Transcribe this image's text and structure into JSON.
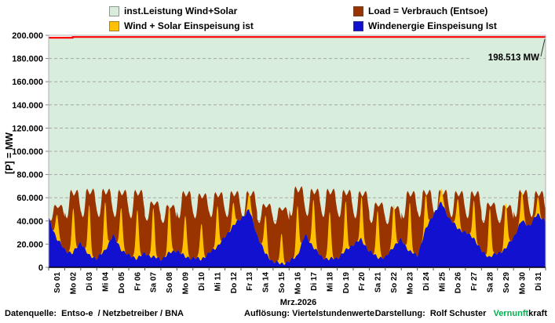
{
  "legend": [
    {
      "label": "inst.Leistung Wind+Solar",
      "color": "#d9eddc"
    },
    {
      "label": "Wind + Solar Einspeisung ist",
      "color": "#ffc000"
    },
    {
      "label": "Load =  Verbrauch (Entsoe)",
      "color": "#993300"
    },
    {
      "label": "Windenergie Einspeisung Ist",
      "color": "#1111cf"
    }
  ],
  "footer": {
    "source": "Datenquelle:  Entso-e  / Netzbetreiber / BNA",
    "resolution": "Auflösung: Viertelstundenwerte",
    "credit_label": "Darstellung:  Rolf Schuster   ",
    "brand_green": "Vernunft",
    "brand_black": "kraft"
  },
  "chart_data": {
    "type": "area",
    "title": "Mrz.2026",
    "ylabel": "[P] = MW",
    "unit": "MW",
    "ylim": [
      0,
      200000
    ],
    "y_tick_step": 20000,
    "y_tick_labels": [
      "0",
      "20.000",
      "40.000",
      "60.000",
      "80.000",
      "100.000",
      "120.000",
      "140.000",
      "160.000",
      "180.000",
      "200.000"
    ],
    "grid": "dashed-horizontal",
    "legend_position": "top",
    "colors": {
      "capacity_area": "#d9eddc",
      "load": "#993300",
      "wind_solar": "#ffc000",
      "wind": "#1111cf",
      "capacity_line": "#ff0000",
      "grid": "#a6a6a6"
    },
    "installed_capacity": {
      "annotation": "198.513 MW",
      "annotation_value_mw": 198513,
      "segments": [
        {
          "from_day": 0,
          "to_day": 1.5,
          "mw": 197900
        },
        {
          "from_day": 1.5,
          "to_day": 31,
          "mw": 198513
        }
      ]
    },
    "series_names": [
      "inst.Leistung Wind+Solar",
      "Load =  Verbrauch (Entsoe)",
      "Wind + Solar Einspeisung ist",
      "Windenergie Einspeisung Ist"
    ],
    "wind_end_mw": 40000,
    "days": [
      {
        "label": "So 01",
        "load_hi": 54000,
        "load_lo": 40000,
        "wind_0h": 42000,
        "wind_12h": 25000,
        "solar_peak": 22000
      },
      {
        "label": "Mo 02",
        "load_hi": 67000,
        "load_lo": 42000,
        "wind_0h": 15000,
        "wind_12h": 12000,
        "solar_peak": 38000
      },
      {
        "label": "Di 03",
        "load_hi": 68000,
        "load_lo": 43000,
        "wind_0h": 22000,
        "wind_12h": 10000,
        "solar_peak": 42000
      },
      {
        "label": "Mi 04",
        "load_hi": 68000,
        "load_lo": 43000,
        "wind_0h": 8000,
        "wind_12h": 14000,
        "solar_peak": 41000
      },
      {
        "label": "Do 05",
        "load_hi": 67000,
        "load_lo": 43000,
        "wind_0h": 28000,
        "wind_12h": 16000,
        "solar_peak": 37000
      },
      {
        "label": "Fr 06",
        "load_hi": 67000,
        "load_lo": 42000,
        "wind_0h": 10000,
        "wind_12h": 8000,
        "solar_peak": 42000
      },
      {
        "label": "Sa 07",
        "load_hi": 57000,
        "load_lo": 40000,
        "wind_0h": 12000,
        "wind_12h": 9000,
        "solar_peak": 41000
      },
      {
        "label": "So 08",
        "load_hi": 54000,
        "load_lo": 38000,
        "wind_0h": 7000,
        "wind_12h": 12000,
        "solar_peak": 40000
      },
      {
        "label": "Mo 09",
        "load_hi": 66000,
        "load_lo": 42000,
        "wind_0h": 15000,
        "wind_12h": 9000,
        "solar_peak": 36000
      },
      {
        "label": "Di 10",
        "load_hi": 64000,
        "load_lo": 42000,
        "wind_0h": 8000,
        "wind_12h": 7000,
        "solar_peak": 31000
      },
      {
        "label": "Mi 11",
        "load_hi": 65000,
        "load_lo": 43000,
        "wind_0h": 12000,
        "wind_12h": 18000,
        "solar_peak": 34000
      },
      {
        "label": "Do 12",
        "load_hi": 66000,
        "load_lo": 43000,
        "wind_0h": 26000,
        "wind_12h": 36000,
        "solar_peak": 19000
      },
      {
        "label": "Fr 13",
        "load_hi": 66000,
        "load_lo": 42000,
        "wind_0h": 42000,
        "wind_12h": 50000,
        "solar_peak": 15000
      },
      {
        "label": "Sa 14",
        "load_hi": 55000,
        "load_lo": 38000,
        "wind_0h": 28000,
        "wind_12h": 12000,
        "solar_peak": 33000
      },
      {
        "label": "So 15",
        "load_hi": 52000,
        "load_lo": 37000,
        "wind_0h": 5000,
        "wind_12h": 3000,
        "solar_peak": 25000
      },
      {
        "label": "Mo 16",
        "load_hi": 70000,
        "load_lo": 44000,
        "wind_0h": 5000,
        "wind_12h": 10000,
        "solar_peak": 42000
      },
      {
        "label": "Di 17",
        "load_hi": 68000,
        "load_lo": 44000,
        "wind_0h": 28000,
        "wind_12h": 18000,
        "solar_peak": 42000
      },
      {
        "label": "Mi 18",
        "load_hi": 68000,
        "load_lo": 43000,
        "wind_0h": 9000,
        "wind_12h": 7000,
        "solar_peak": 41000
      },
      {
        "label": "Do 19",
        "load_hi": 67000,
        "load_lo": 43000,
        "wind_0h": 8000,
        "wind_12h": 14000,
        "solar_peak": 41000
      },
      {
        "label": "Fr 20",
        "load_hi": 66000,
        "load_lo": 42000,
        "wind_0h": 20000,
        "wind_12h": 24000,
        "solar_peak": 36000
      },
      {
        "label": "Sa 21",
        "load_hi": 56000,
        "load_lo": 38000,
        "wind_0h": 14000,
        "wind_12h": 9000,
        "solar_peak": 41000
      },
      {
        "label": "So 22",
        "load_hi": 53000,
        "load_lo": 37000,
        "wind_0h": 8000,
        "wind_12h": 18000,
        "solar_peak": 37000
      },
      {
        "label": "Mo 23",
        "load_hi": 66000,
        "load_lo": 42000,
        "wind_0h": 24000,
        "wind_12h": 14000,
        "solar_peak": 41000
      },
      {
        "label": "Di 24",
        "load_hi": 67000,
        "load_lo": 43000,
        "wind_0h": 10000,
        "wind_12h": 32000,
        "solar_peak": 28000
      },
      {
        "label": "Mi 25",
        "load_hi": 67000,
        "load_lo": 43000,
        "wind_0h": 46000,
        "wind_12h": 56000,
        "solar_peak": 12000
      },
      {
        "label": "Do 26",
        "load_hi": 66000,
        "load_lo": 43000,
        "wind_0h": 42000,
        "wind_12h": 34000,
        "solar_peak": 26000
      },
      {
        "label": "Fr 27",
        "load_hi": 66000,
        "load_lo": 42000,
        "wind_0h": 30000,
        "wind_12h": 26000,
        "solar_peak": 32000
      },
      {
        "label": "Sa 28",
        "load_hi": 56000,
        "load_lo": 38000,
        "wind_0h": 14000,
        "wind_12h": 9000,
        "solar_peak": 41000
      },
      {
        "label": "So 29",
        "load_hi": 54000,
        "load_lo": 38000,
        "wind_0h": 12000,
        "wind_12h": 16000,
        "solar_peak": 39000
      },
      {
        "label": "Mo 30",
        "load_hi": 67000,
        "load_lo": 43000,
        "wind_0h": 26000,
        "wind_12h": 40000,
        "solar_peak": 25000
      },
      {
        "label": "Di 31",
        "load_hi": 66000,
        "load_lo": 43000,
        "wind_0h": 36000,
        "wind_12h": 46000,
        "solar_peak": 14000
      }
    ]
  }
}
